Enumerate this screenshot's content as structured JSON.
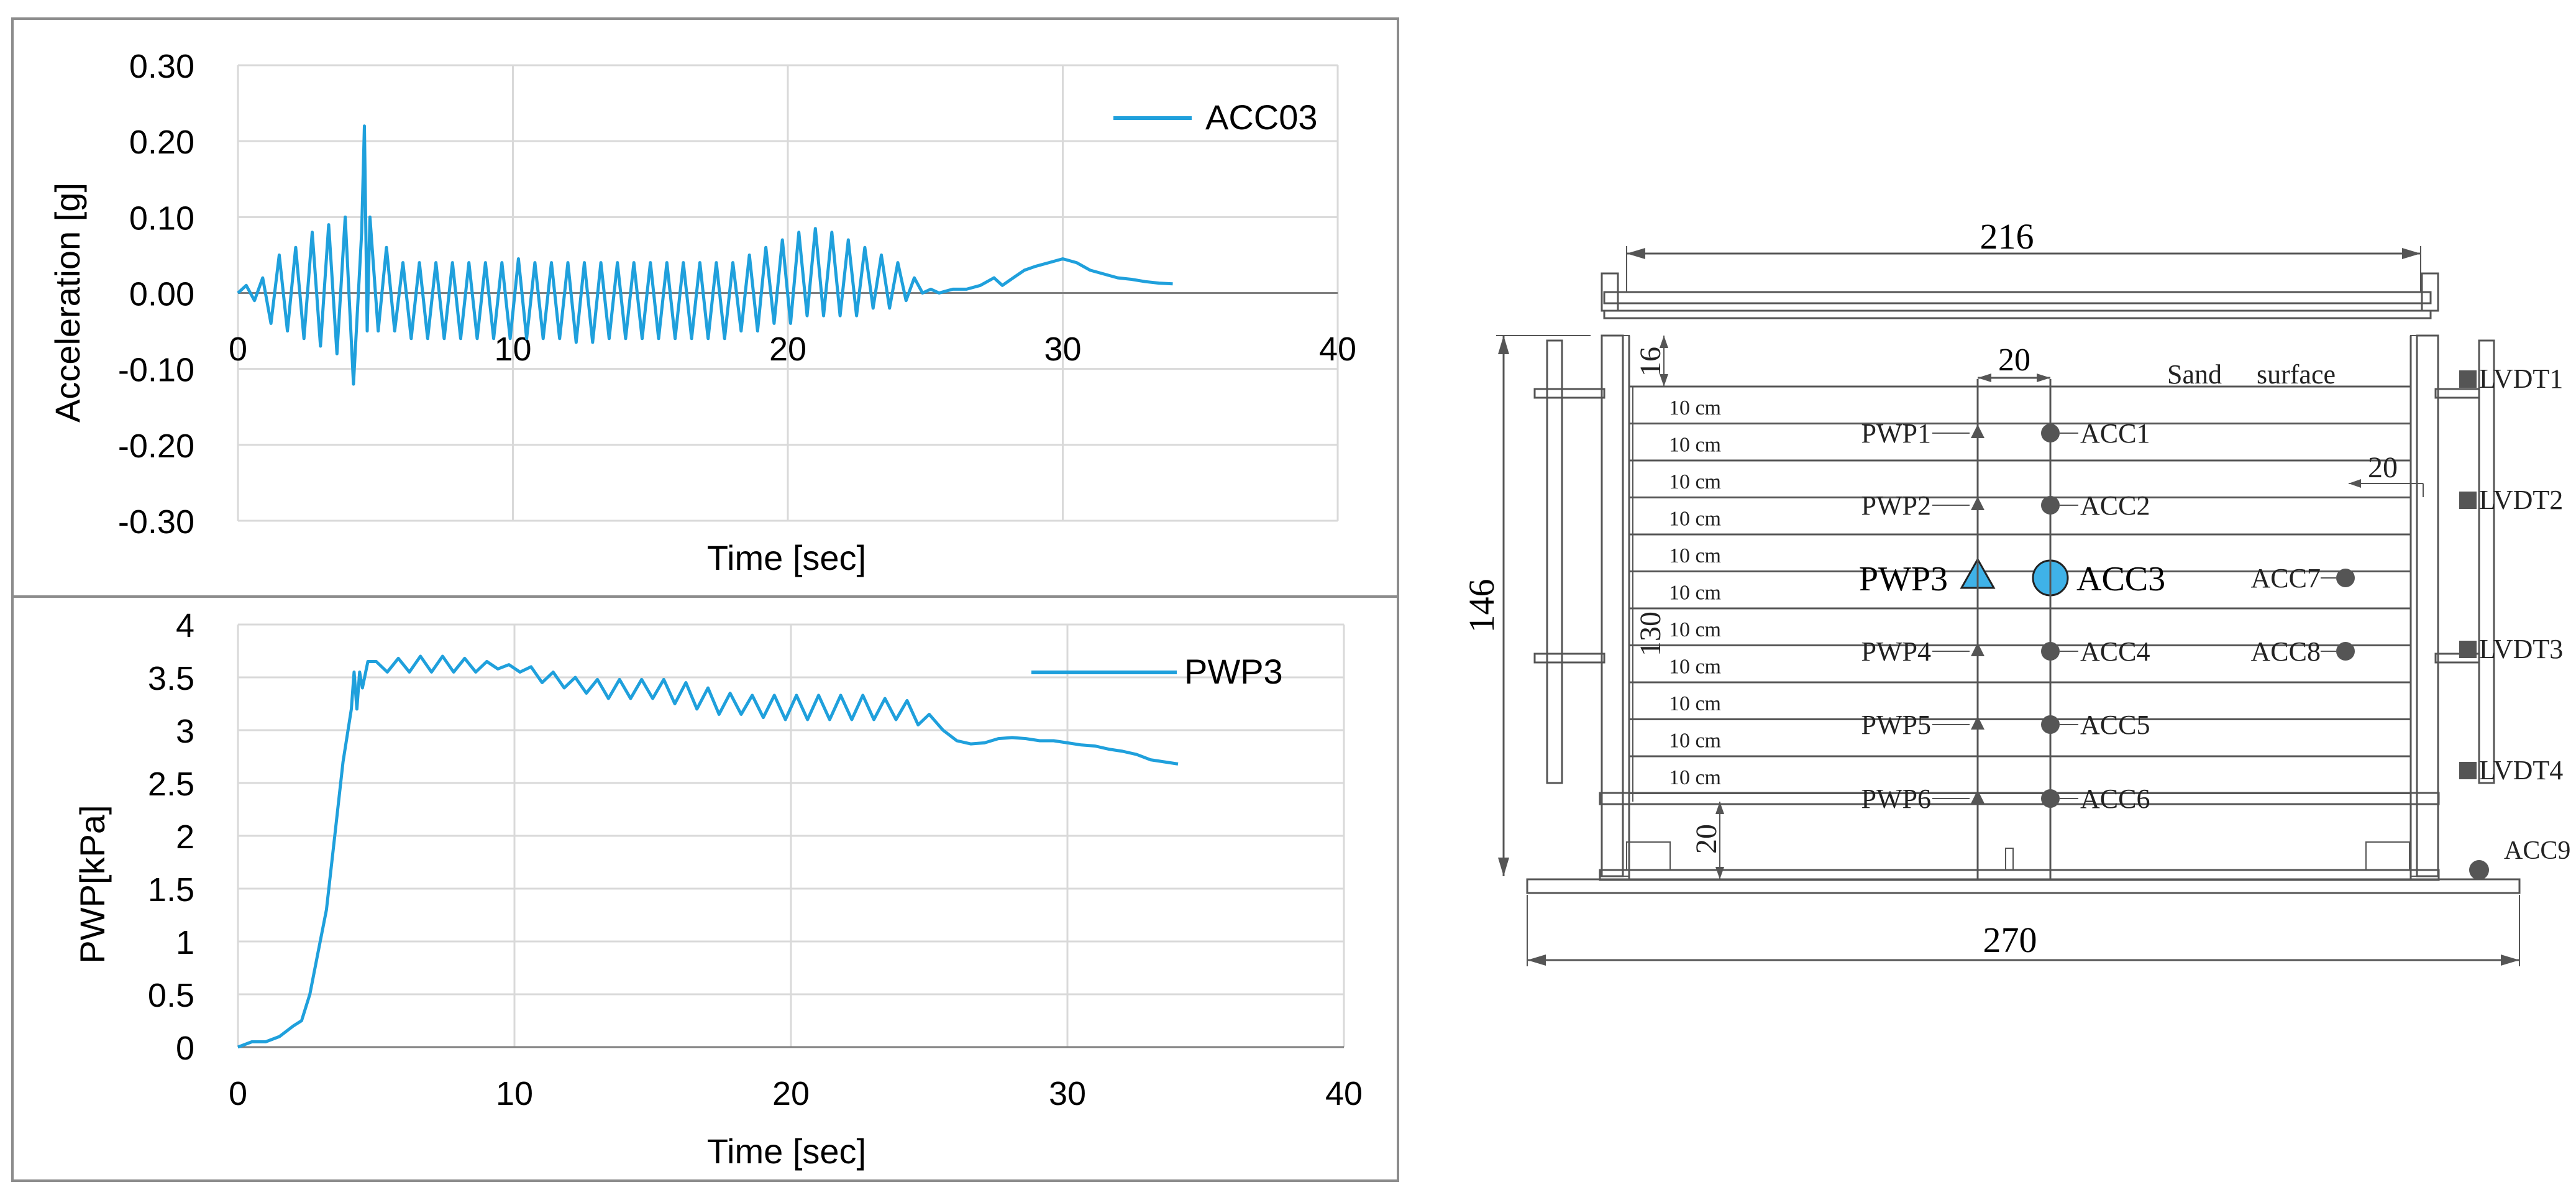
{
  "colors": {
    "series": "#1fa0dc",
    "grid": "#d9d9d9",
    "axis": "#7f7f7f",
    "frame": "#8c8c8c",
    "text": "#000000",
    "sensor": "#555555",
    "highlight": "#3fb2e8"
  },
  "chart_data": [
    {
      "type": "line",
      "title": "",
      "xlabel": "Time [sec]",
      "ylabel": "Acceleration [g]",
      "xlim": [
        0,
        40
      ],
      "ylim": [
        -0.3,
        0.3
      ],
      "xticks": [
        "0",
        "10",
        "20",
        "30",
        "40"
      ],
      "yticks": [
        "0.30",
        "0.20",
        "0.10",
        "0.00",
        "-0.10",
        "-0.20",
        "-0.30"
      ],
      "legend_position": "top-right",
      "series": [
        {
          "name": "ACC03",
          "x": [
            0,
            0.3,
            0.6,
            0.9,
            1.2,
            1.5,
            1.8,
            2.1,
            2.4,
            2.7,
            3,
            3.3,
            3.6,
            3.9,
            4.2,
            4.5,
            4.6,
            4.7,
            4.8,
            5.1,
            5.4,
            5.7,
            6,
            6.3,
            6.6,
            6.9,
            7.2,
            7.5,
            7.8,
            8.1,
            8.4,
            8.7,
            9,
            9.3,
            9.6,
            9.9,
            10.2,
            10.5,
            10.8,
            11.1,
            11.4,
            11.7,
            12,
            12.3,
            12.6,
            12.9,
            13.2,
            13.5,
            13.8,
            14.1,
            14.4,
            14.7,
            15,
            15.3,
            15.6,
            15.9,
            16.2,
            16.5,
            16.8,
            17.1,
            17.4,
            17.7,
            18,
            18.3,
            18.6,
            18.9,
            19.2,
            19.5,
            19.8,
            20.1,
            20.4,
            20.7,
            21,
            21.3,
            21.6,
            21.9,
            22.2,
            22.5,
            22.8,
            23.1,
            23.4,
            23.7,
            24,
            24.3,
            24.6,
            24.9,
            25.2,
            25.5,
            26,
            26.5,
            27,
            27.5,
            27.8,
            28.2,
            28.6,
            29,
            29.5,
            30,
            30.5,
            31,
            31.5,
            32,
            32.5,
            33,
            33.5,
            34
          ],
          "values": [
            0,
            0.01,
            -0.01,
            0.02,
            -0.04,
            0.05,
            -0.05,
            0.06,
            -0.06,
            0.08,
            -0.07,
            0.09,
            -0.08,
            0.1,
            -0.12,
            0.08,
            0.22,
            -0.05,
            0.1,
            -0.05,
            0.06,
            -0.05,
            0.04,
            -0.06,
            0.04,
            -0.06,
            0.04,
            -0.06,
            0.04,
            -0.06,
            0.04,
            -0.06,
            0.04,
            -0.06,
            0.04,
            -0.06,
            0.045,
            -0.06,
            0.04,
            -0.06,
            0.04,
            -0.06,
            0.04,
            -0.065,
            0.04,
            -0.065,
            0.04,
            -0.06,
            0.04,
            -0.06,
            0.04,
            -0.06,
            0.04,
            -0.06,
            0.04,
            -0.06,
            0.04,
            -0.06,
            0.04,
            -0.06,
            0.04,
            -0.06,
            0.04,
            -0.05,
            0.05,
            -0.05,
            0.06,
            -0.04,
            0.07,
            -0.04,
            0.08,
            -0.03,
            0.085,
            -0.03,
            0.08,
            -0.03,
            0.07,
            -0.03,
            0.06,
            -0.02,
            0.05,
            -0.02,
            0.04,
            -0.01,
            0.02,
            0,
            0.005,
            0,
            0.005,
            0.005,
            0.01,
            0.02,
            0.01,
            0.02,
            0.03,
            0.035,
            0.04,
            0.045,
            0.04,
            0.03,
            0.025,
            0.02,
            0.018,
            0.015,
            0.013,
            0.012
          ]
        }
      ]
    },
    {
      "type": "line",
      "title": "",
      "xlabel": "Time [sec]",
      "ylabel": "PWP[kPa]",
      "xlim": [
        0,
        40
      ],
      "ylim": [
        0,
        4
      ],
      "xticks": [
        "0",
        "10",
        "20",
        "30",
        "40"
      ],
      "yticks": [
        "4",
        "3.5",
        "3",
        "2.5",
        "2",
        "1.5",
        "1",
        "0.5",
        "0"
      ],
      "legend_position": "top-right",
      "series": [
        {
          "name": "PWP3",
          "x": [
            0,
            0.5,
            1,
            1.5,
            2,
            2.3,
            2.6,
            2.9,
            3.2,
            3.5,
            3.8,
            4.1,
            4.2,
            4.3,
            4.4,
            4.5,
            4.7,
            5,
            5.4,
            5.8,
            6.2,
            6.6,
            7,
            7.4,
            7.8,
            8.2,
            8.6,
            9,
            9.4,
            9.8,
            10.2,
            10.6,
            11,
            11.4,
            11.8,
            12.2,
            12.6,
            13,
            13.4,
            13.8,
            14.2,
            14.6,
            15,
            15.4,
            15.8,
            16.2,
            16.6,
            17,
            17.4,
            17.8,
            18.2,
            18.6,
            19,
            19.4,
            19.8,
            20.2,
            20.6,
            21,
            21.4,
            21.8,
            22.2,
            22.6,
            23,
            23.4,
            23.8,
            24.2,
            24.6,
            25,
            25.5,
            26,
            26.5,
            27,
            27.5,
            28,
            28.5,
            29,
            29.5,
            30,
            30.5,
            31,
            31.5,
            32,
            32.5,
            33,
            33.5,
            34
          ],
          "values": [
            0,
            0.05,
            0.05,
            0.1,
            0.2,
            0.25,
            0.5,
            0.9,
            1.3,
            2,
            2.7,
            3.2,
            3.55,
            3.2,
            3.55,
            3.4,
            3.65,
            3.65,
            3.55,
            3.68,
            3.55,
            3.7,
            3.55,
            3.7,
            3.55,
            3.68,
            3.55,
            3.65,
            3.58,
            3.62,
            3.55,
            3.6,
            3.45,
            3.55,
            3.4,
            3.5,
            3.35,
            3.48,
            3.3,
            3.48,
            3.3,
            3.48,
            3.3,
            3.48,
            3.25,
            3.45,
            3.2,
            3.4,
            3.15,
            3.35,
            3.15,
            3.33,
            3.12,
            3.33,
            3.1,
            3.33,
            3.1,
            3.33,
            3.1,
            3.33,
            3.1,
            3.33,
            3.1,
            3.3,
            3.1,
            3.28,
            3.05,
            3.15,
            3,
            2.9,
            2.87,
            2.88,
            2.92,
            2.93,
            2.92,
            2.9,
            2.9,
            2.88,
            2.86,
            2.85,
            2.82,
            2.8,
            2.77,
            2.72,
            2.7,
            2.68
          ]
        }
      ]
    }
  ],
  "diagram": {
    "dims": {
      "top_width": "216",
      "bottom_width": "270",
      "height": "146",
      "sand_depth": "130",
      "top_gap": "16",
      "bottom_gap": "20",
      "sensor_spacing": "20",
      "lvdt_offset": "20"
    },
    "sand_label": "Sand",
    "surface_label": "surface",
    "layer_label": "10 cm",
    "layer_count": 11,
    "pwp_labels": [
      "PWP1",
      "PWP2",
      "PWP3",
      "PWP4",
      "PWP5",
      "PWP6"
    ],
    "acc_labels": [
      "ACC1",
      "ACC2",
      "ACC3",
      "ACC4",
      "ACC5",
      "ACC6"
    ],
    "acc7": "ACC7",
    "acc8": "ACC8",
    "acc9": "ACC9",
    "lvdt_labels": [
      "LVDT1",
      "LVDT2",
      "LVDT3",
      "LVDT4"
    ]
  }
}
